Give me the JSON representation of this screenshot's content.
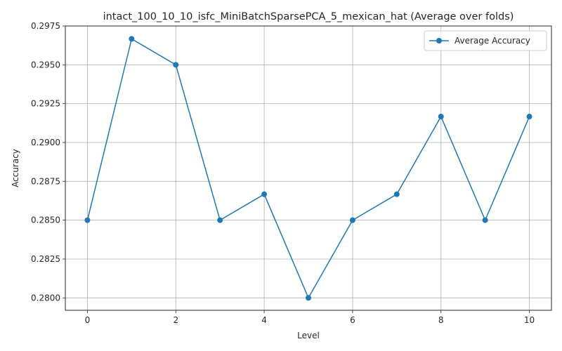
{
  "chart_data": {
    "type": "line",
    "title": "intact_100_10_10_isfc_MiniBatchSparsePCA_5_mexican_hat (Average over folds)",
    "xlabel": "Level",
    "ylabel": "Accuracy",
    "x": [
      0,
      1,
      2,
      3,
      4,
      5,
      6,
      7,
      8,
      9,
      10
    ],
    "series": [
      {
        "name": "Average Accuracy",
        "color": "#1f77b4",
        "values": [
          0.285,
          0.29667,
          0.295,
          0.285,
          0.28667,
          0.28,
          0.285,
          0.28667,
          0.29167,
          0.285,
          0.29167
        ]
      }
    ],
    "xlim": [
      -0.5,
      10.5
    ],
    "ylim": [
      0.2792,
      0.2975
    ],
    "xticks": [
      "0",
      "2",
      "4",
      "6",
      "8",
      "10"
    ],
    "yticks": [
      "0.2800",
      "0.2825",
      "0.2850",
      "0.2875",
      "0.2900",
      "0.2925",
      "0.2950",
      "0.2975"
    ],
    "grid": true,
    "legend_position": "top-right"
  }
}
